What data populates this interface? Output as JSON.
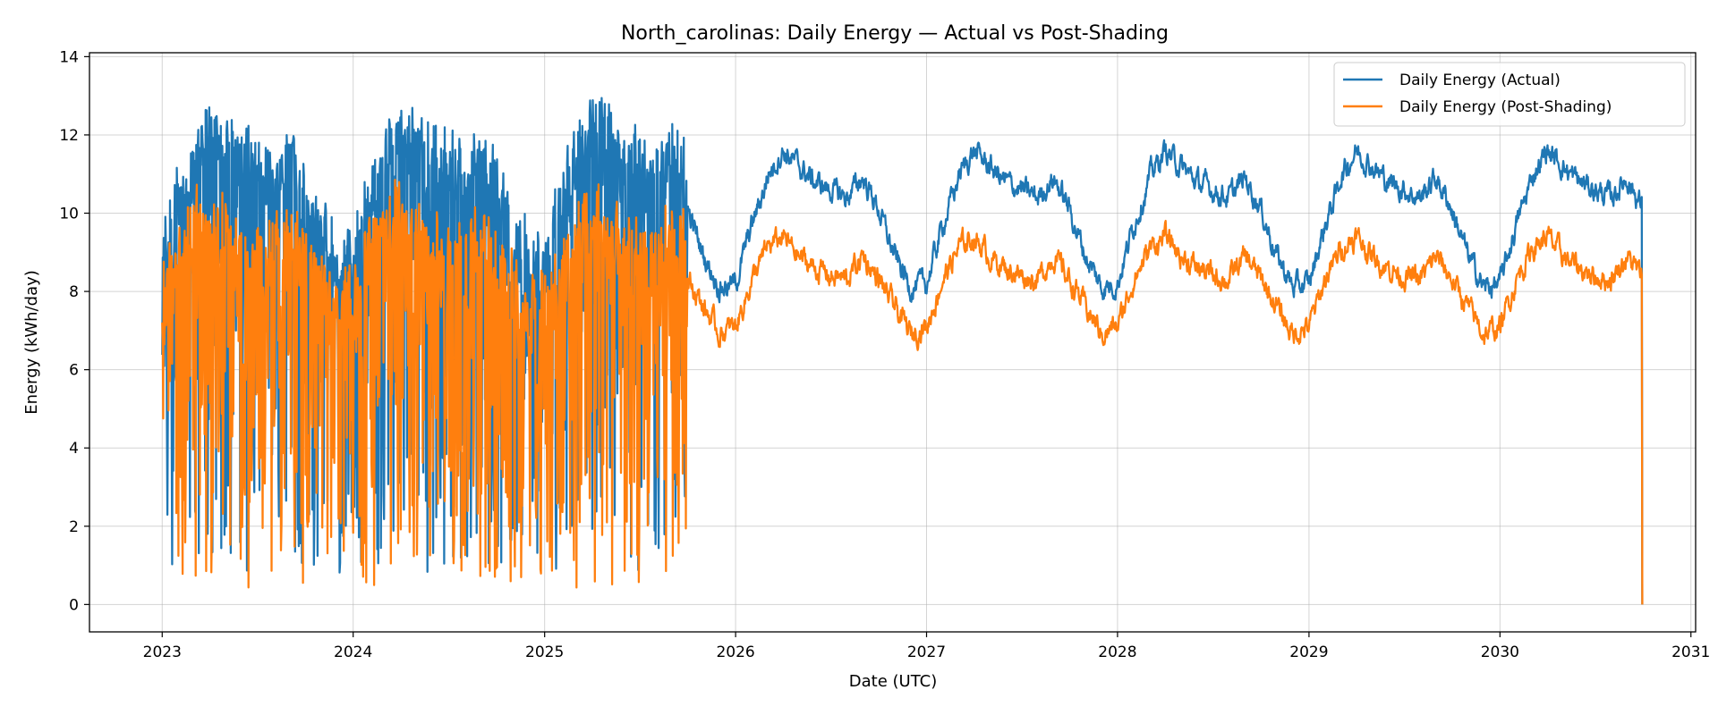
{
  "chart_data": {
    "type": "line",
    "title": "North_carolinas: Daily Energy — Actual vs Post-Shading",
    "xlabel": "Date (UTC)",
    "ylabel": "Energy (kWh/day)",
    "xlim": [
      "2022-08-15",
      "2031-01-10"
    ],
    "ylim": [
      -0.7,
      14.1
    ],
    "xticks": [
      "2023",
      "2024",
      "2025",
      "2026",
      "2027",
      "2028",
      "2029",
      "2030",
      "2031"
    ],
    "yticks": [
      "0",
      "2",
      "4",
      "6",
      "8",
      "10",
      "12",
      "14"
    ],
    "grid": true,
    "legend": "top-right",
    "x_range": [
      "2023-01-01",
      "2030-09-30"
    ],
    "measured_period_end": "2025-09-30",
    "series": [
      {
        "name": "Daily Energy (Actual)",
        "color": "#1f77b4",
        "measured_envelope": {
          "min": 0.8,
          "max": 13.4
        },
        "modeled_monthly": [
          {
            "month": "Jan",
            "value": 8.2
          },
          {
            "month": "Feb",
            "value": 9.7
          },
          {
            "month": "Mar",
            "value": 10.9
          },
          {
            "month": "Apr",
            "value": 11.6
          },
          {
            "month": "May",
            "value": 11.2
          },
          {
            "month": "Jun",
            "value": 10.8
          },
          {
            "month": "Jul",
            "value": 10.6
          },
          {
            "month": "Aug",
            "value": 10.4
          },
          {
            "month": "Sep",
            "value": 10.9
          },
          {
            "month": "Oct",
            "value": 10.1
          },
          {
            "month": "Nov",
            "value": 8.9
          },
          {
            "month": "Dec",
            "value": 8.1
          }
        ],
        "end_value": 0
      },
      {
        "name": "Daily Energy (Post-Shading)",
        "color": "#ff7f0e",
        "measured_envelope": {
          "min": 0.4,
          "max": 11.1
        },
        "modeled_monthly": [
          {
            "month": "Jan",
            "value": 7.1
          },
          {
            "month": "Feb",
            "value": 8.3
          },
          {
            "month": "Mar",
            "value": 9.1
          },
          {
            "month": "Apr",
            "value": 9.4
          },
          {
            "month": "May",
            "value": 8.9
          },
          {
            "month": "Jun",
            "value": 8.6
          },
          {
            "month": "Jul",
            "value": 8.4
          },
          {
            "month": "Aug",
            "value": 8.3
          },
          {
            "month": "Sep",
            "value": 8.9
          },
          {
            "month": "Oct",
            "value": 8.3
          },
          {
            "month": "Nov",
            "value": 7.6
          },
          {
            "month": "Dec",
            "value": 6.9
          }
        ],
        "end_value": 0
      }
    ]
  }
}
